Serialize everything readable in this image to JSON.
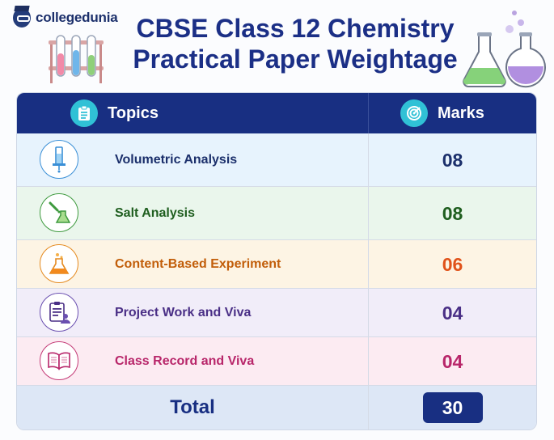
{
  "brand": {
    "name": "collegedunia"
  },
  "title": {
    "line1": "CBSE Class 12 Chemistry",
    "line2": "Practical Paper Weightage"
  },
  "table": {
    "header": {
      "topics": "Topics",
      "marks": "Marks",
      "topics_icon": "clipboard-icon",
      "marks_icon": "target-icon"
    },
    "rows": [
      {
        "topic": "Volumetric Analysis",
        "marks": "08",
        "icon": "burette-icon",
        "color": "#1b2f6b",
        "bg": "#e7f3fd",
        "accent": "#3a8fd6"
      },
      {
        "topic": "Salt Analysis",
        "marks": "08",
        "icon": "dropper-flask-icon",
        "color": "#1f5e1f",
        "bg": "#eaf6ec",
        "accent": "#3e9a3e"
      },
      {
        "topic": "Content-Based Experiment",
        "marks": "06",
        "icon": "flask-icon",
        "color": "#c25e0a",
        "bg": "#fdf4e4",
        "accent": "#e58a1f"
      },
      {
        "topic": "Project Work and Viva",
        "marks": "04",
        "icon": "clipboard-person-icon",
        "color": "#4a2f86",
        "bg": "#f1edf9",
        "accent": "#6a4fb0"
      },
      {
        "topic": "Class Record and Viva",
        "marks": "04",
        "icon": "open-book-icon",
        "color": "#b8266a",
        "bg": "#fcebf2",
        "accent": "#c43a76"
      }
    ],
    "total": {
      "label": "Total",
      "marks": "30"
    }
  }
}
